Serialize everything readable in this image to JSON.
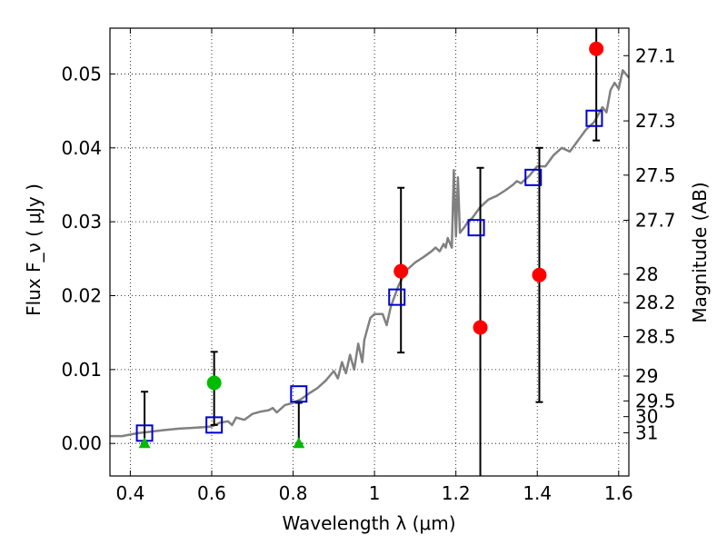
{
  "chart_data": {
    "type": "scatter",
    "xlabel": "Wavelength  λ (μm)",
    "ylabel": "Flux  F_ν  ( μJy )",
    "ylabel_right": "Magnitude (AB)",
    "xlim": [
      0.35,
      1.625
    ],
    "ylim": [
      -0.0044,
      0.0562
    ],
    "grid": true,
    "x_ticks": [
      {
        "value": 0.4,
        "label": "0.4"
      },
      {
        "value": 0.6,
        "label": "0.6"
      },
      {
        "value": 0.8,
        "label": "0.8"
      },
      {
        "value": 1.0,
        "label": "1"
      },
      {
        "value": 1.2,
        "label": "1.2"
      },
      {
        "value": 1.4,
        "label": "1.4"
      },
      {
        "value": 1.6,
        "label": "1.6"
      }
    ],
    "y_ticks": [
      {
        "value": 0.0,
        "label": "0.00"
      },
      {
        "value": 0.01,
        "label": "0.01"
      },
      {
        "value": 0.02,
        "label": "0.02"
      },
      {
        "value": 0.03,
        "label": "0.03"
      },
      {
        "value": 0.04,
        "label": "0.04"
      },
      {
        "value": 0.05,
        "label": "0.05"
      }
    ],
    "magnitude_ticks": [
      {
        "value": 27.1,
        "label": "27.1"
      },
      {
        "value": 27.3,
        "label": "27.3"
      },
      {
        "value": 27.5,
        "label": "27.5"
      },
      {
        "value": 27.7,
        "label": "27.7"
      },
      {
        "value": 28,
        "label": "28"
      },
      {
        "value": 28.2,
        "label": "28.2"
      },
      {
        "value": 28.5,
        "label": "28.5"
      },
      {
        "value": 29,
        "label": "29"
      },
      {
        "value": 29.5,
        "label": "29.5"
      },
      {
        "value": 30,
        "label": "30"
      },
      {
        "value": 31,
        "label": "31"
      }
    ],
    "model_spectrum": {
      "color": "#808080",
      "x": [
        0.35,
        0.38,
        0.4,
        0.42,
        0.45,
        0.48,
        0.5,
        0.52,
        0.55,
        0.58,
        0.6,
        0.62,
        0.64,
        0.65,
        0.66,
        0.68,
        0.7,
        0.72,
        0.74,
        0.75,
        0.76,
        0.78,
        0.8,
        0.82,
        0.84,
        0.86,
        0.88,
        0.9,
        0.91,
        0.92,
        0.93,
        0.94,
        0.95,
        0.96,
        0.97,
        0.975,
        0.98,
        0.99,
        1.0,
        1.02,
        1.03,
        1.04,
        1.05,
        1.06,
        1.07,
        1.08,
        1.09,
        1.1,
        1.12,
        1.14,
        1.15,
        1.16,
        1.17,
        1.175,
        1.18,
        1.19,
        1.195,
        1.2,
        1.205,
        1.21,
        1.22,
        1.23,
        1.24,
        1.26,
        1.28,
        1.3,
        1.32,
        1.34,
        1.35,
        1.36,
        1.38,
        1.4,
        1.42,
        1.44,
        1.46,
        1.48,
        1.5,
        1.52,
        1.54,
        1.56,
        1.57,
        1.58,
        1.59,
        1.6,
        1.61,
        1.625
      ],
      "y": [
        0.001,
        0.001,
        0.0012,
        0.0014,
        0.0016,
        0.0018,
        0.0019,
        0.002,
        0.0021,
        0.0022,
        0.0023,
        0.0028,
        0.003,
        0.0025,
        0.0035,
        0.0032,
        0.004,
        0.0043,
        0.0045,
        0.0048,
        0.0042,
        0.0052,
        0.0055,
        0.006,
        0.0068,
        0.0075,
        0.0085,
        0.0098,
        0.0088,
        0.011,
        0.0095,
        0.012,
        0.01,
        0.0135,
        0.011,
        0.014,
        0.015,
        0.017,
        0.0175,
        0.0175,
        0.016,
        0.0185,
        0.02,
        0.0215,
        0.0225,
        0.0235,
        0.024,
        0.0245,
        0.0252,
        0.026,
        0.0265,
        0.026,
        0.027,
        0.0265,
        0.0278,
        0.0265,
        0.037,
        0.028,
        0.036,
        0.0285,
        0.0292,
        0.03,
        0.0305,
        0.032,
        0.033,
        0.0335,
        0.0342,
        0.035,
        0.0355,
        0.0352,
        0.0362,
        0.0375,
        0.0375,
        0.039,
        0.04,
        0.0395,
        0.041,
        0.0425,
        0.0435,
        0.0455,
        0.0448,
        0.0478,
        0.0488,
        0.048,
        0.0505,
        0.0495
      ]
    },
    "series": [
      {
        "marker": "open-square",
        "color": "#0000cc",
        "x": [
          0.435,
          0.606,
          0.814,
          1.055,
          1.25,
          1.39,
          1.54
        ],
        "y": [
          0.0014,
          0.0025,
          0.0067,
          0.0198,
          0.0292,
          0.036,
          0.044
        ]
      },
      {
        "marker": "filled-circle",
        "color": "#ff0000",
        "x": [
          1.065,
          1.26,
          1.405,
          1.545
        ],
        "y": [
          0.0233,
          0.0157,
          0.0228,
          0.0534
        ],
        "yerr_low": [
          0.011,
          0.0209,
          0.0172,
          0.0124
        ],
        "yerr_high": [
          0.0113,
          0.0216,
          0.0172,
          0.0102
        ]
      },
      {
        "marker": "filled-circle",
        "color": "#00bb00",
        "x": [
          0.606
        ],
        "y": [
          0.0082
        ],
        "yerr_low": [
          0.0057
        ],
        "yerr_high": [
          0.0042
        ]
      },
      {
        "marker": "filled-triangle",
        "color": "#00bb00",
        "x": [
          0.435,
          0.814
        ],
        "y": [
          0.0,
          0.0
        ],
        "yerr_high": [
          0.007,
          0.0055
        ]
      }
    ]
  }
}
